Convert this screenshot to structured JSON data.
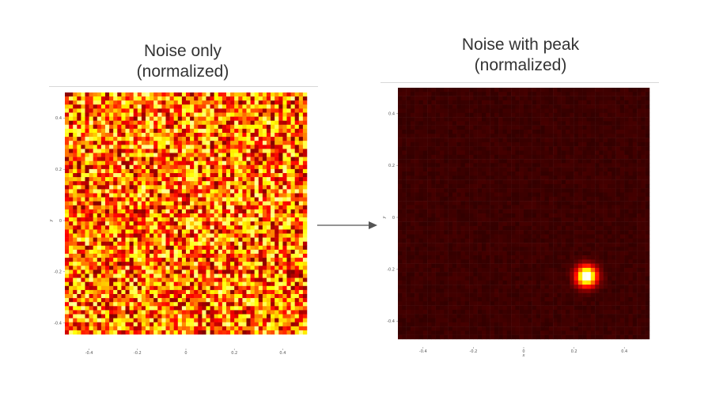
{
  "panels": [
    {
      "id": "noise-only",
      "title_lines": [
        "Noise only",
        "(normalized)"
      ]
    },
    {
      "id": "noise-with-peak",
      "title_lines": [
        "Noise with peak",
        "(normalized)"
      ]
    }
  ],
  "colors": {
    "colormap": "hot",
    "arrow": "#555555",
    "title_text": "#333333"
  },
  "chart_data": [
    {
      "type": "heatmap",
      "title": "Noise only (normalized)",
      "xlabel": "x",
      "ylabel": "y",
      "x_ticks": [
        "-0.4",
        "-0.2",
        "0",
        "0.2",
        "0.4"
      ],
      "y_ticks": [
        "0.4",
        "0.2",
        "0",
        "-0.2",
        "-0.4"
      ],
      "xlim": [
        -0.5,
        0.5
      ],
      "ylim": [
        -0.5,
        0.5
      ],
      "grid": false,
      "content": "uniform random noise, values 0-1"
    },
    {
      "type": "heatmap",
      "title": "Noise with peak (normalized)",
      "xlabel": "x",
      "ylabel": "y",
      "x_ticks": [
        "-0.4",
        "-0.2",
        "0",
        "0.2",
        "0.4"
      ],
      "y_ticks": [
        "0.4",
        "0.2",
        "0",
        "-0.2",
        "-0.4"
      ],
      "xlim": [
        -0.5,
        0.5
      ],
      "ylim": [
        -0.5,
        0.5
      ],
      "grid": false,
      "peak_center": [
        0.25,
        -0.25
      ],
      "peak_value": 1.0
    }
  ]
}
